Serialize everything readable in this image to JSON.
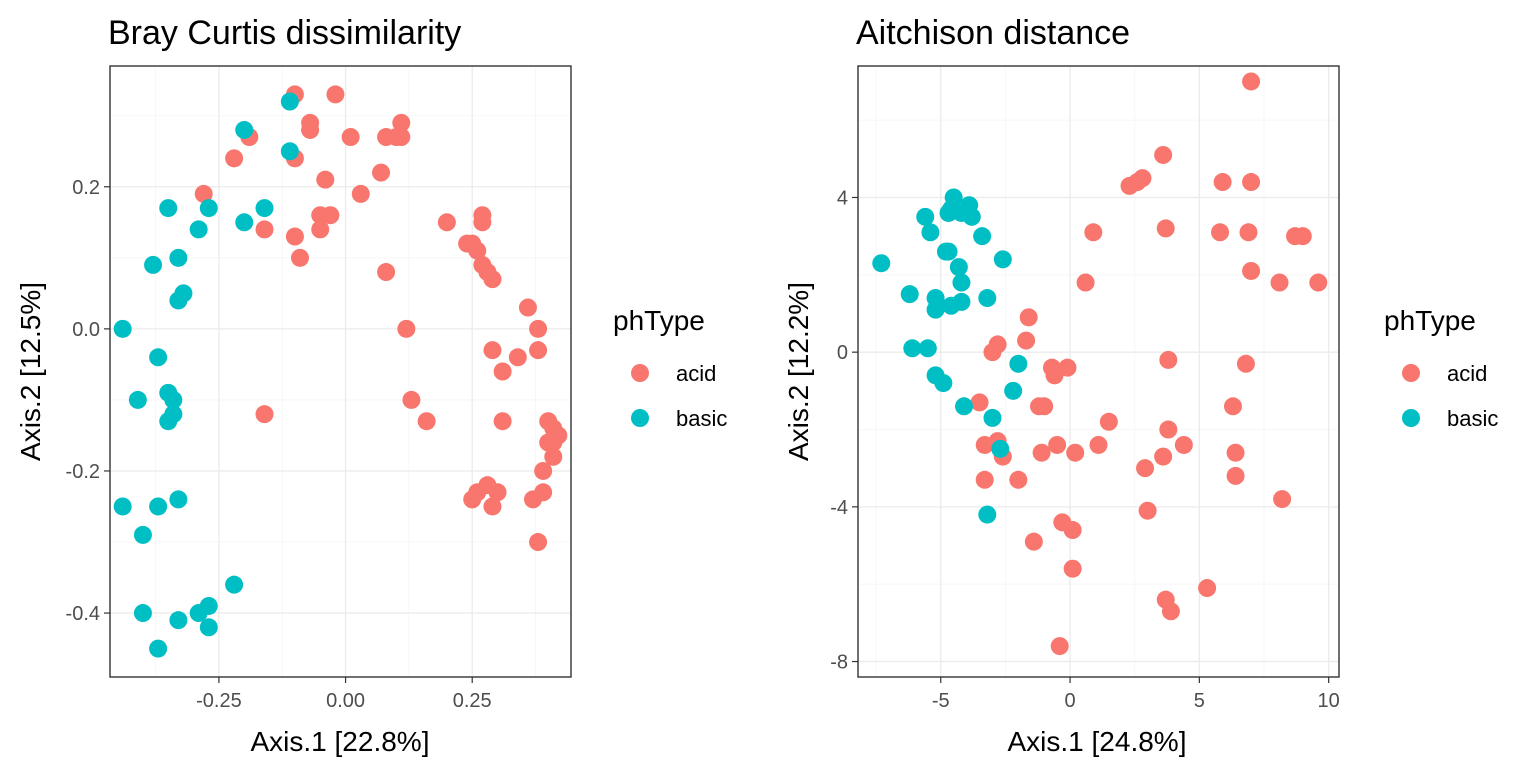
{
  "chart_data": [
    {
      "type": "scatter",
      "title": "Bray Curtis dissimilarity",
      "xlabel": "Axis.1   [22.8%]",
      "ylabel": "Axis.2   [12.5%]",
      "xlim": [
        -0.465,
        0.445
      ],
      "ylim": [
        -0.49,
        0.37
      ],
      "xticks": [
        -0.25,
        0.0,
        0.25
      ],
      "xtick_labels": [
        "-0.25",
        "0.00",
        "0.25"
      ],
      "yticks": [
        -0.4,
        -0.2,
        0.0,
        0.2
      ],
      "ytick_labels": [
        "-0.4",
        "-0.2",
        "0.0",
        "0.2"
      ],
      "grid": true,
      "legend": {
        "title": "phType",
        "position": "right",
        "entries": [
          {
            "label": "acid",
            "color": "#F8766D"
          },
          {
            "label": "basic",
            "color": "#00BFC4"
          }
        ]
      },
      "series": [
        {
          "name": "acid",
          "color": "#F8766D",
          "points": [
            [
              -0.1,
              0.33
            ],
            [
              -0.02,
              0.33
            ],
            [
              -0.07,
              0.29
            ],
            [
              -0.07,
              0.28
            ],
            [
              0.11,
              0.29
            ],
            [
              0.08,
              0.27
            ],
            [
              0.1,
              0.27
            ],
            [
              0.11,
              0.27
            ],
            [
              0.01,
              0.27
            ],
            [
              -0.19,
              0.27
            ],
            [
              -0.22,
              0.24
            ],
            [
              -0.1,
              0.24
            ],
            [
              0.07,
              0.22
            ],
            [
              -0.04,
              0.21
            ],
            [
              -0.28,
              0.19
            ],
            [
              0.03,
              0.19
            ],
            [
              -0.05,
              0.16
            ],
            [
              -0.03,
              0.16
            ],
            [
              0.27,
              0.16
            ],
            [
              0.27,
              0.15
            ],
            [
              0.2,
              0.15
            ],
            [
              -0.16,
              0.14
            ],
            [
              -0.05,
              0.14
            ],
            [
              -0.1,
              0.13
            ],
            [
              0.24,
              0.12
            ],
            [
              0.25,
              0.12
            ],
            [
              0.26,
              0.11
            ],
            [
              -0.09,
              0.1
            ],
            [
              0.27,
              0.09
            ],
            [
              0.28,
              0.08
            ],
            [
              0.08,
              0.08
            ],
            [
              0.29,
              0.07
            ],
            [
              0.36,
              0.03
            ],
            [
              0.38,
              0.0
            ],
            [
              0.12,
              0.0
            ],
            [
              0.29,
              -0.03
            ],
            [
              0.38,
              -0.03
            ],
            [
              0.34,
              -0.04
            ],
            [
              0.31,
              -0.06
            ],
            [
              0.13,
              -0.1
            ],
            [
              0.4,
              -0.13
            ],
            [
              0.41,
              -0.14
            ],
            [
              0.42,
              -0.15
            ],
            [
              0.4,
              -0.16
            ],
            [
              0.41,
              -0.16
            ],
            [
              0.41,
              -0.18
            ],
            [
              -0.16,
              -0.12
            ],
            [
              0.16,
              -0.13
            ],
            [
              0.31,
              -0.13
            ],
            [
              0.39,
              -0.2
            ],
            [
              0.39,
              -0.23
            ],
            [
              0.37,
              -0.24
            ],
            [
              0.28,
              -0.22
            ],
            [
              0.3,
              -0.23
            ],
            [
              0.26,
              -0.23
            ],
            [
              0.25,
              -0.24
            ],
            [
              0.29,
              -0.25
            ],
            [
              0.38,
              -0.3
            ]
          ]
        },
        {
          "name": "basic",
          "color": "#00BFC4",
          "points": [
            [
              -0.11,
              0.32
            ],
            [
              -0.2,
              0.28
            ],
            [
              -0.11,
              0.25
            ],
            [
              -0.27,
              0.17
            ],
            [
              -0.35,
              0.17
            ],
            [
              -0.16,
              0.17
            ],
            [
              -0.2,
              0.15
            ],
            [
              -0.29,
              0.14
            ],
            [
              -0.33,
              0.1
            ],
            [
              -0.38,
              0.09
            ],
            [
              -0.32,
              0.05
            ],
            [
              -0.33,
              0.04
            ],
            [
              -0.44,
              0.0
            ],
            [
              -0.37,
              -0.04
            ],
            [
              -0.35,
              -0.09
            ],
            [
              -0.34,
              -0.1
            ],
            [
              -0.41,
              -0.1
            ],
            [
              -0.34,
              -0.12
            ],
            [
              -0.35,
              -0.13
            ],
            [
              -0.33,
              -0.24
            ],
            [
              -0.37,
              -0.25
            ],
            [
              -0.44,
              -0.25
            ],
            [
              -0.4,
              -0.29
            ],
            [
              -0.22,
              -0.36
            ],
            [
              -0.27,
              -0.39
            ],
            [
              -0.4,
              -0.4
            ],
            [
              -0.29,
              -0.4
            ],
            [
              -0.33,
              -0.41
            ],
            [
              -0.27,
              -0.42
            ],
            [
              -0.37,
              -0.45
            ]
          ]
        }
      ]
    },
    {
      "type": "scatter",
      "title": "Aitchison distance",
      "xlabel": "Axis.1   [24.8%]",
      "ylabel": "Axis.2   [12.2%]",
      "xlim": [
        -8.2,
        10.4
      ],
      "ylim": [
        -8.4,
        7.4
      ],
      "xticks": [
        -5,
        0,
        5,
        10
      ],
      "xtick_labels": [
        "-5",
        "0",
        "5",
        "10"
      ],
      "yticks": [
        -8,
        -4,
        0,
        4
      ],
      "ytick_labels": [
        "-8",
        "-4",
        "0",
        "4"
      ],
      "grid": true,
      "legend": {
        "title": "phType",
        "position": "right",
        "entries": [
          {
            "label": "acid",
            "color": "#F8766D"
          },
          {
            "label": "basic",
            "color": "#00BFC4"
          }
        ]
      },
      "series": [
        {
          "name": "acid",
          "color": "#F8766D",
          "points": [
            [
              7.0,
              7.0
            ],
            [
              3.6,
              5.1
            ],
            [
              2.8,
              4.5
            ],
            [
              2.6,
              4.4
            ],
            [
              2.3,
              4.3
            ],
            [
              5.9,
              4.4
            ],
            [
              7.0,
              4.4
            ],
            [
              3.7,
              3.2
            ],
            [
              5.8,
              3.1
            ],
            [
              6.9,
              3.1
            ],
            [
              0.9,
              3.1
            ],
            [
              8.7,
              3.0
            ],
            [
              9.0,
              3.0
            ],
            [
              7.0,
              2.1
            ],
            [
              0.6,
              1.8
            ],
            [
              8.1,
              1.8
            ],
            [
              9.6,
              1.8
            ],
            [
              -1.6,
              0.9
            ],
            [
              -1.7,
              0.3
            ],
            [
              -2.8,
              0.2
            ],
            [
              -3.0,
              0.0
            ],
            [
              -0.1,
              -0.4
            ],
            [
              -0.7,
              -0.4
            ],
            [
              -0.6,
              -0.6
            ],
            [
              3.8,
              -0.2
            ],
            [
              6.8,
              -0.3
            ],
            [
              -3.5,
              -1.3
            ],
            [
              -1.0,
              -1.4
            ],
            [
              -1.2,
              -1.4
            ],
            [
              6.3,
              -1.4
            ],
            [
              1.5,
              -1.8
            ],
            [
              3.8,
              -2.0
            ],
            [
              -2.8,
              -2.3
            ],
            [
              -3.3,
              -2.4
            ],
            [
              -0.5,
              -2.4
            ],
            [
              1.1,
              -2.4
            ],
            [
              4.4,
              -2.4
            ],
            [
              -2.6,
              -2.7
            ],
            [
              -1.1,
              -2.6
            ],
            [
              0.2,
              -2.6
            ],
            [
              3.6,
              -2.7
            ],
            [
              6.4,
              -2.6
            ],
            [
              2.9,
              -3.0
            ],
            [
              -3.3,
              -3.3
            ],
            [
              -2.0,
              -3.3
            ],
            [
              6.4,
              -3.2
            ],
            [
              8.2,
              -3.8
            ],
            [
              3.0,
              -4.1
            ],
            [
              -0.3,
              -4.4
            ],
            [
              0.1,
              -4.6
            ],
            [
              -1.4,
              -4.9
            ],
            [
              0.1,
              -5.6
            ],
            [
              5.3,
              -6.1
            ],
            [
              3.7,
              -6.4
            ],
            [
              3.9,
              -6.7
            ],
            [
              -0.4,
              -7.6
            ]
          ]
        },
        {
          "name": "basic",
          "color": "#00BFC4",
          "points": [
            [
              -4.5,
              4.0
            ],
            [
              -3.9,
              3.8
            ],
            [
              -4.6,
              3.7
            ],
            [
              -5.6,
              3.5
            ],
            [
              -4.2,
              3.6
            ],
            [
              -4.7,
              3.6
            ],
            [
              -3.8,
              3.5
            ],
            [
              -5.4,
              3.1
            ],
            [
              -3.4,
              3.0
            ],
            [
              -4.7,
              2.6
            ],
            [
              -4.8,
              2.6
            ],
            [
              -2.6,
              2.4
            ],
            [
              -7.3,
              2.3
            ],
            [
              -4.3,
              2.2
            ],
            [
              -4.2,
              1.8
            ],
            [
              -6.2,
              1.5
            ],
            [
              -5.2,
              1.4
            ],
            [
              -3.2,
              1.4
            ],
            [
              -4.2,
              1.3
            ],
            [
              -4.6,
              1.2
            ],
            [
              -5.2,
              1.1
            ],
            [
              -6.1,
              0.1
            ],
            [
              -5.5,
              0.1
            ],
            [
              -2.0,
              -0.3
            ],
            [
              -5.2,
              -0.6
            ],
            [
              -4.9,
              -0.8
            ],
            [
              -2.2,
              -1.0
            ],
            [
              -4.1,
              -1.4
            ],
            [
              -3.0,
              -1.7
            ],
            [
              -2.7,
              -2.5
            ],
            [
              -3.2,
              -4.2
            ]
          ]
        }
      ]
    }
  ]
}
